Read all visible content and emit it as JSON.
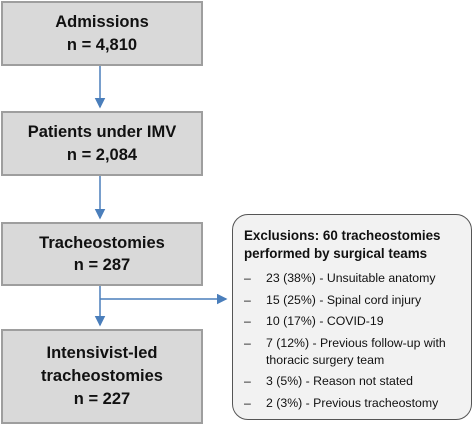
{
  "boxes": {
    "admissions": {
      "title": "Admissions",
      "count": "n = 4,810"
    },
    "imv": {
      "title": "Patients under IMV",
      "count": "n = 2,084"
    },
    "tracheostomies": {
      "title": "Tracheostomies",
      "count": "n = 287"
    },
    "intensivist": {
      "title_line1": "Intensivist-led",
      "title_line2": "tracheostomies",
      "count": "n = 227"
    }
  },
  "exclusions": {
    "title": "Exclusions: 60 tracheostomies performed by surgical teams",
    "bullet": "–",
    "items": [
      "23 (38%) - Unsuitable anatomy",
      "15 (25%) - Spinal cord injury",
      "10 (17%) - COVID-19",
      "7 (12%) - Previous follow-up with thoracic surgery team",
      "3 (5%) - Reason not stated",
      "2 (3%) - Previous tracheostomy"
    ]
  },
  "colors": {
    "box_fill": "#d9d9d9",
    "box_border": "#9e9e9e",
    "exclusion_fill": "#f2f2f2",
    "arrow": "#4a7ebb"
  }
}
